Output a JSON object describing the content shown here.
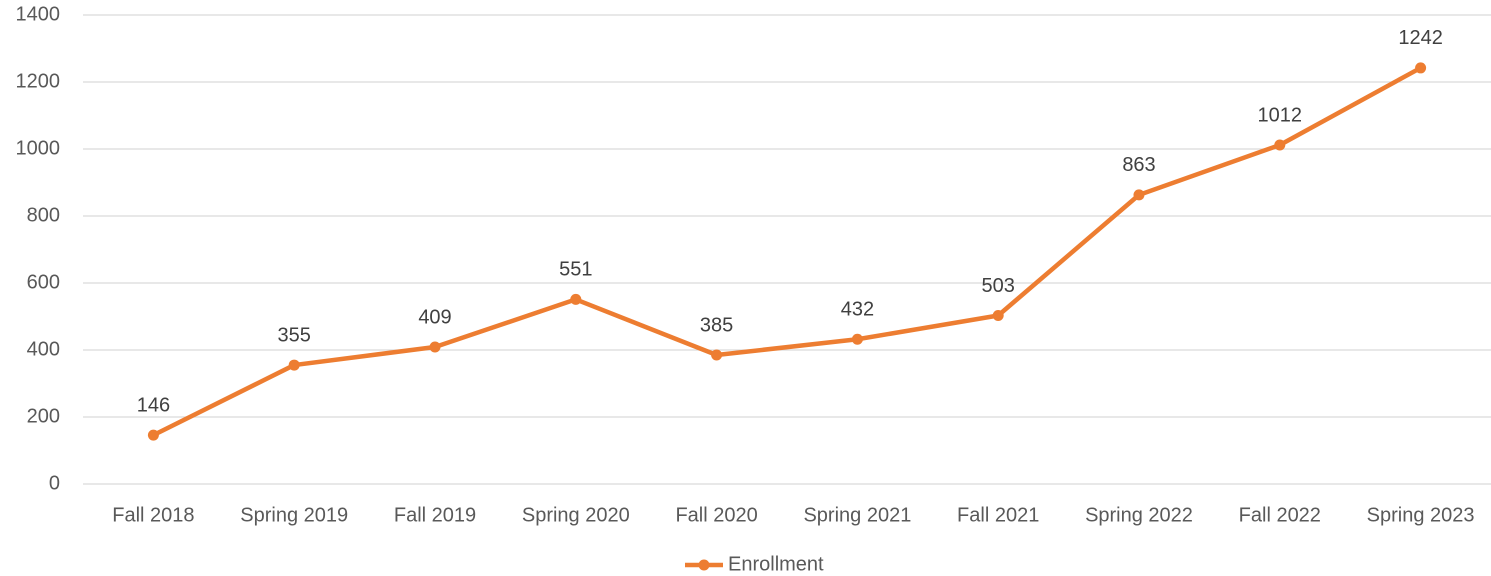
{
  "chart_data": {
    "type": "line",
    "categories": [
      "Fall 2018",
      "Spring 2019",
      "Fall 2019",
      "Spring 2020",
      "Fall 2020",
      "Spring 2021",
      "Fall 2021",
      "Spring 2022",
      "Fall 2022",
      "Spring 2023"
    ],
    "series": [
      {
        "name": "Enrollment",
        "color": "#ed7d31",
        "values": [
          146,
          355,
          409,
          551,
          385,
          432,
          503,
          863,
          1012,
          1242
        ]
      }
    ],
    "ylim": [
      0,
      1400
    ],
    "yticks": [
      0,
      200,
      400,
      600,
      800,
      1000,
      1200,
      1400
    ],
    "grid": true,
    "legend": "bottom"
  }
}
